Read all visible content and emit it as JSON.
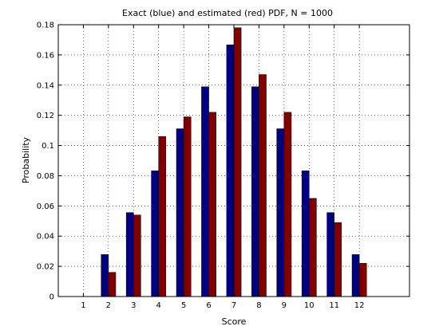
{
  "chart_data": {
    "type": "bar",
    "title": "Exact (blue) and estimated (red) PDF, N = 1000",
    "xlabel": "Score",
    "ylabel": "Probability",
    "categories": [
      1,
      2,
      3,
      4,
      5,
      6,
      7,
      8,
      9,
      10,
      11,
      12
    ],
    "xlim": [
      0,
      14
    ],
    "ylim": [
      0,
      0.18
    ],
    "yticks": [
      "0",
      "0.02",
      "0.04",
      "0.06",
      "0.08",
      "0.1",
      "0.12",
      "0.14",
      "0.16",
      "0.18"
    ],
    "grid": true,
    "series": [
      {
        "color": "#000080",
        "values": [
          0,
          0.0278,
          0.0556,
          0.0833,
          0.1111,
          0.1389,
          0.1667,
          0.1389,
          0.1111,
          0.0833,
          0.0556,
          0.0278
        ]
      },
      {
        "color": "#800000",
        "values": [
          0,
          0.016,
          0.054,
          0.106,
          0.119,
          0.122,
          0.178,
          0.147,
          0.122,
          0.065,
          0.049,
          0.022
        ]
      }
    ]
  }
}
